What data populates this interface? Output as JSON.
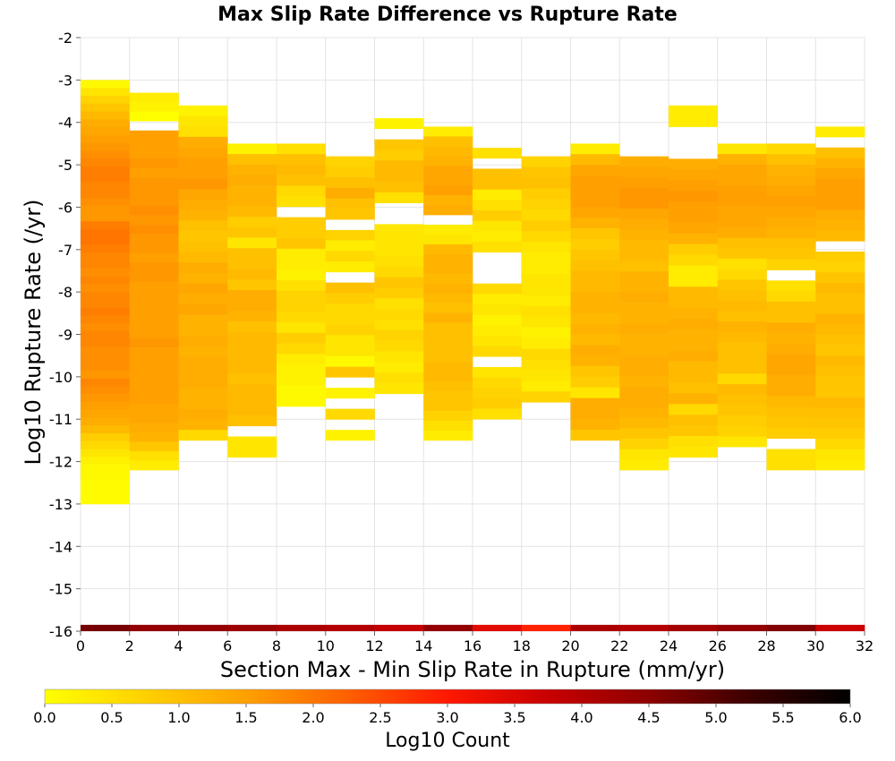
{
  "chart_data": {
    "type": "heatmap",
    "title": "Max Slip Rate Difference vs Rupture Rate",
    "xlabel": "Section Max - Min Slip Rate in Rupture (mm/yr)",
    "ylabel": "Log10 Rupture Rate (/yr)",
    "xlim": [
      0,
      32
    ],
    "ylim": [
      -16,
      -2
    ],
    "x_ticks": [
      "0",
      "2",
      "4",
      "6",
      "8",
      "10",
      "12",
      "14",
      "16",
      "18",
      "20",
      "22",
      "24",
      "26",
      "28",
      "30",
      "32"
    ],
    "y_ticks": [
      "-2",
      "-3",
      "-4",
      "-5",
      "-6",
      "-7",
      "-8",
      "-9",
      "-10",
      "-11",
      "-12",
      "-13",
      "-14",
      "-15",
      "-16"
    ],
    "grid": true,
    "x_bin_width": 2,
    "y_bin_height": 0.25,
    "colorbar": {
      "label": "Log10 Count",
      "min": 0.0,
      "max": 6.0,
      "ticks": [
        "0.0",
        "0.5",
        "1.0",
        "1.5",
        "2.0",
        "2.5",
        "3.0",
        "3.5",
        "4.0",
        "4.5",
        "5.0",
        "5.5",
        "6.0"
      ],
      "colors": [
        "#ffff00",
        "#ffd000",
        "#ffa000",
        "#ff6000",
        "#ff1800",
        "#c80000",
        "#8c0000",
        "#3c0000",
        "#000000"
      ]
    },
    "columns": [
      {
        "x": 0,
        "y_top": -3.0,
        "y_bottom": -13.0,
        "levels": [
          0.1,
          0.4,
          0.7,
          0.9,
          1.1,
          1.3,
          1.4,
          1.5,
          1.6,
          1.7,
          1.8,
          1.9,
          1.9,
          1.8,
          1.8,
          1.7,
          1.6,
          1.6,
          1.9,
          2.0,
          2.0,
          1.9,
          1.8,
          1.8,
          1.7,
          1.8,
          1.7,
          1.8,
          1.8,
          1.9,
          1.8,
          1.7,
          1.8,
          1.8,
          1.7,
          1.7,
          1.7,
          1.6,
          1.8,
          1.7,
          1.6,
          1.5,
          1.4,
          1.3,
          1.1,
          0.8,
          0.6,
          0.4,
          0.2,
          0.1,
          0.1,
          0.05,
          0.05,
          0.05
        ]
      },
      {
        "x": 2,
        "y_top": -3.3,
        "y_bottom": -12.2,
        "levels": [
          0.3,
          0.2,
          0.0,
          null,
          1.5,
          1.5,
          1.5,
          1.6,
          1.5,
          1.6,
          1.6,
          1.6,
          1.7,
          1.6,
          1.7,
          1.6,
          1.6,
          1.5,
          1.6,
          1.6,
          1.5,
          1.5,
          1.5,
          1.5,
          1.5,
          1.5,
          1.6,
          1.5,
          1.5,
          1.5,
          1.5,
          1.5,
          1.5,
          1.4,
          1.4,
          1.3,
          1.2,
          0.9,
          0.5,
          0.3
        ]
      },
      {
        "x": 4,
        "y_top": -3.6,
        "y_bottom": -11.5,
        "levels": [
          0.2,
          0.4,
          0.5,
          1.3,
          1.4,
          1.5,
          1.5,
          1.6,
          1.4,
          1.3,
          1.2,
          1.0,
          0.9,
          1.0,
          1.1,
          1.3,
          1.2,
          1.4,
          1.3,
          1.4,
          1.2,
          1.2,
          1.3,
          1.2,
          1.3,
          1.3,
          1.3,
          1.2,
          1.2,
          1.3,
          1.2,
          0.6
        ]
      },
      {
        "x": 6,
        "y_top": -4.5,
        "y_bottom": -11.9,
        "levels": [
          0.2,
          1.0,
          1.2,
          1.3,
          1.2,
          1.2,
          1.1,
          0.8,
          0.9,
          0.4,
          1.0,
          1.0,
          1.1,
          0.9,
          1.3,
          1.3,
          1.2,
          1.0,
          1.1,
          1.1,
          1.1,
          1.1,
          1.0,
          1.1,
          1.1,
          1.1,
          1.0,
          null,
          0.4,
          0.4
        ]
      },
      {
        "x": 8,
        "y_top": -4.5,
        "y_bottom": -10.7,
        "levels": [
          0.5,
          1.0,
          1.1,
          1.0,
          0.6,
          0.5,
          null,
          0.8,
          0.8,
          0.9,
          0.3,
          0.3,
          0.2,
          0.5,
          0.7,
          0.7,
          0.6,
          0.4,
          0.8,
          0.6,
          0.3,
          0.2,
          0.2,
          0.1,
          0.1
        ]
      },
      {
        "x": 10,
        "y_top": -4.8,
        "y_bottom": -11.5,
        "levels": [
          0.7,
          0.8,
          1.0,
          1.3,
          1.0,
          0.9,
          null,
          0.7,
          0.3,
          0.6,
          0.3,
          null,
          1.0,
          0.8,
          0.6,
          0.6,
          0.7,
          0.4,
          0.4,
          0.1,
          0.9,
          null,
          0.2,
          null,
          0.6,
          null,
          0.2
        ]
      },
      {
        "x": 12,
        "y_top": -3.9,
        "y_bottom": -10.4,
        "levels": [
          0.2,
          null,
          0.9,
          0.8,
          1.1,
          1.1,
          1.0,
          0.5,
          null,
          null,
          0.4,
          0.4,
          0.4,
          0.5,
          0.6,
          0.9,
          0.8,
          0.5,
          0.6,
          0.5,
          0.7,
          0.6,
          0.4,
          0.3,
          0.5,
          0.4
        ]
      },
      {
        "x": 14,
        "y_top": -4.1,
        "y_bottom": -11.5,
        "levels": [
          0.3,
          1.0,
          1.1,
          1.2,
          1.4,
          1.4,
          1.5,
          1.2,
          1.3,
          null,
          0.3,
          0.4,
          1.1,
          1.2,
          1.2,
          1.1,
          1.2,
          1.1,
          1.0,
          1.2,
          1.0,
          1.0,
          1.0,
          1.0,
          1.1,
          1.1,
          1.0,
          0.9,
          0.9,
          0.7,
          0.5,
          0.3
        ]
      },
      {
        "x": 16,
        "y_top": -4.6,
        "y_bottom": -11.0,
        "levels": [
          0.5,
          null,
          1.0,
          1.0,
          0.3,
          0.5,
          0.8,
          0.4,
          0.3,
          0.5,
          null,
          null,
          null,
          0.6,
          0.3,
          0.4,
          0.2,
          0.3,
          0.4,
          0.6,
          null,
          0.4,
          0.6,
          0.7,
          0.8,
          0.5
        ]
      },
      {
        "x": 18,
        "y_top": -4.8,
        "y_bottom": -10.6,
        "levels": [
          0.7,
          0.9,
          1.0,
          0.8,
          0.7,
          0.6,
          0.8,
          0.6,
          0.4,
          0.3,
          0.3,
          0.4,
          0.4,
          0.3,
          0.5,
          0.4,
          0.2,
          0.3,
          0.6,
          0.5,
          0.4,
          0.3,
          0.7
        ]
      },
      {
        "x": 20,
        "y_top": -4.5,
        "y_bottom": -11.5,
        "levels": [
          0.3,
          1.1,
          1.4,
          1.5,
          1.5,
          1.5,
          1.4,
          1.2,
          0.9,
          0.8,
          0.9,
          1.0,
          1.1,
          1.1,
          1.2,
          1.2,
          1.1,
          1.2,
          1.1,
          1.3,
          1.2,
          0.9,
          0.8,
          0.4,
          1.3,
          1.3,
          1.2,
          0.9
        ]
      },
      {
        "x": 22,
        "y_top": -4.8,
        "y_bottom": -12.2,
        "levels": [
          1.3,
          1.4,
          1.5,
          1.6,
          1.6,
          1.4,
          1.3,
          1.2,
          1.1,
          1.1,
          1.0,
          1.2,
          1.2,
          1.3,
          1.2,
          1.2,
          1.3,
          1.2,
          1.2,
          1.3,
          1.3,
          1.2,
          1.3,
          1.3,
          1.2,
          1.1,
          0.9,
          0.7,
          0.4,
          0.3
        ]
      },
      {
        "x": 24,
        "y_top": -3.6,
        "y_bottom": -11.9,
        "levels": [
          0.3,
          0.3,
          null,
          null,
          null,
          1.3,
          1.4,
          1.5,
          1.6,
          1.5,
          1.5,
          1.4,
          1.2,
          0.8,
          0.6,
          0.3,
          0.3,
          1.1,
          1.1,
          1.2,
          1.3,
          1.2,
          1.2,
          1.3,
          1.1,
          1.1,
          1.0,
          1.2,
          0.6,
          1.0,
          0.9,
          0.5,
          0.4
        ]
      },
      {
        "x": 26,
        "y_top": -4.5,
        "y_bottom": -11.9,
        "levels": [
          0.4,
          1.2,
          1.4,
          1.4,
          1.5,
          1.5,
          1.4,
          1.4,
          1.3,
          1.0,
          0.9,
          0.5,
          0.6,
          0.9,
          1.0,
          1.1,
          1.0,
          1.2,
          1.1,
          1.0,
          1.0,
          1.0,
          0.6,
          1.1,
          1.0,
          0.9,
          0.8,
          0.7,
          0.4,
          null
        ]
      },
      {
        "x": 28,
        "y_top": -4.5,
        "y_bottom": -12.2,
        "levels": [
          0.6,
          1.0,
          1.2,
          1.3,
          1.4,
          1.5,
          1.4,
          1.3,
          1.2,
          1.0,
          0.9,
          0.7,
          null,
          0.5,
          0.6,
          1.0,
          1.0,
          1.3,
          1.2,
          1.3,
          1.4,
          1.4,
          1.3,
          1.3,
          1.1,
          1.0,
          0.9,
          0.8,
          null,
          0.5,
          0.5
        ]
      },
      {
        "x": 30,
        "y_top": -4.1,
        "y_bottom": -12.2,
        "levels": [
          0.3,
          null,
          1.0,
          1.2,
          1.4,
          1.5,
          1.5,
          1.5,
          1.3,
          1.2,
          1.1,
          null,
          0.8,
          0.7,
          0.9,
          1.1,
          1.0,
          1.0,
          1.2,
          1.1,
          1.0,
          0.9,
          1.1,
          1.0,
          0.9,
          0.9,
          1.1,
          1.0,
          0.9,
          0.8,
          0.6,
          0.4,
          0.3
        ]
      }
    ],
    "bottom_row": {
      "y": -16.0,
      "levels": [
        4.7,
        4.4,
        4.4,
        4.3,
        4.1,
        4.0,
        3.8,
        4.4,
        3.4,
        2.9,
        4.1,
        4.0,
        4.2,
        4.4,
        4.6,
        3.7
      ]
    }
  }
}
